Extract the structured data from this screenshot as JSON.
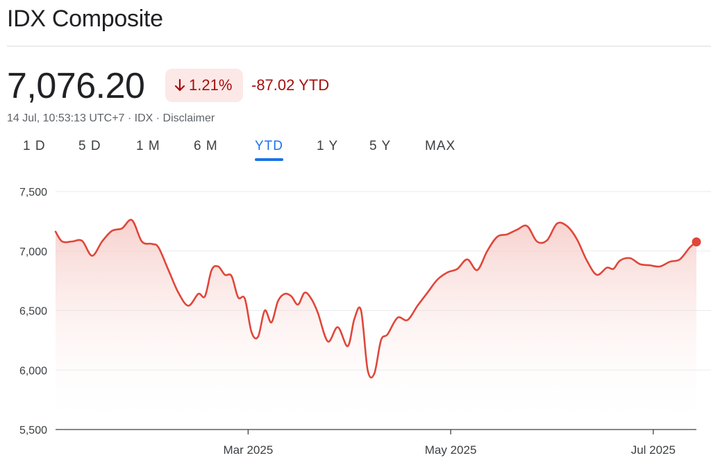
{
  "header": {
    "title": "IDX Composite"
  },
  "quote": {
    "price": "7,076.20",
    "change_pct": "1.21%",
    "change_abs": "-87.02 YTD",
    "direction": "down",
    "timestamp": "14 Jul, 10:53:13 UTC+7",
    "exchange": "IDX",
    "disclaimer": "Disclaimer",
    "separator": " · "
  },
  "tabs": [
    {
      "label": "1 D",
      "active": false
    },
    {
      "label": "5 D",
      "active": false
    },
    {
      "label": "1 M",
      "active": false
    },
    {
      "label": "6 M",
      "active": false
    },
    {
      "label": "YTD",
      "active": true
    },
    {
      "label": "1 Y",
      "active": false
    },
    {
      "label": "5 Y",
      "active": false
    },
    {
      "label": "MAX",
      "active": false
    }
  ],
  "colors": {
    "line": "#e0463a",
    "fill_top": "#f4c2bd",
    "down_text": "#a50e0e",
    "down_bg": "#fce8e6",
    "active_tab": "#1a73e8",
    "grid": "#e8eaed"
  },
  "chart_data": {
    "type": "area",
    "title": "",
    "xlabel": "",
    "ylabel": "",
    "ylim": [
      5500,
      7500
    ],
    "yticks": [
      "7,500",
      "7,000",
      "6,500",
      "6,000",
      "5,500"
    ],
    "ytick_values": [
      7500,
      7000,
      6500,
      6000,
      5500
    ],
    "xlim": [
      "2025-01-02",
      "2025-07-14"
    ],
    "xticks": [
      {
        "label": "Mar 2025",
        "date": "2025-03-01"
      },
      {
        "label": "May 2025",
        "date": "2025-05-01"
      },
      {
        "label": "Jul 2025",
        "date": "2025-07-01"
      }
    ],
    "grid": true,
    "series": [
      {
        "x": [
          "2025-01-02",
          "2025-01-04",
          "2025-01-07",
          "2025-01-10",
          "2025-01-13",
          "2025-01-16",
          "2025-01-19",
          "2025-01-22",
          "2025-01-25",
          "2025-01-28",
          "2025-01-31",
          "2025-02-02",
          "2025-02-05",
          "2025-02-08",
          "2025-02-11",
          "2025-02-14",
          "2025-02-16",
          "2025-02-18",
          "2025-02-20",
          "2025-02-22",
          "2025-02-24",
          "2025-02-26",
          "2025-02-28",
          "2025-03-02",
          "2025-03-04",
          "2025-03-06",
          "2025-03-08",
          "2025-03-10",
          "2025-03-12",
          "2025-03-14",
          "2025-03-16",
          "2025-03-18",
          "2025-03-20",
          "2025-03-22",
          "2025-03-25",
          "2025-03-28",
          "2025-03-31",
          "2025-04-02",
          "2025-04-04",
          "2025-04-06",
          "2025-04-08",
          "2025-04-10",
          "2025-04-12",
          "2025-04-15",
          "2025-04-18",
          "2025-04-21",
          "2025-04-24",
          "2025-04-27",
          "2025-04-30",
          "2025-05-03",
          "2025-05-06",
          "2025-05-09",
          "2025-05-12",
          "2025-05-15",
          "2025-05-18",
          "2025-05-21",
          "2025-05-24",
          "2025-05-27",
          "2025-05-30",
          "2025-06-02",
          "2025-06-05",
          "2025-06-08",
          "2025-06-11",
          "2025-06-14",
          "2025-06-17",
          "2025-06-19",
          "2025-06-21",
          "2025-06-24",
          "2025-06-27",
          "2025-06-30",
          "2025-07-03",
          "2025-07-06",
          "2025-07-09",
          "2025-07-12",
          "2025-07-14"
        ],
        "values": [
          7163,
          7080,
          7080,
          7085,
          6960,
          7080,
          7170,
          7190,
          7260,
          7080,
          7060,
          7030,
          6840,
          6650,
          6540,
          6640,
          6620,
          6840,
          6870,
          6800,
          6790,
          6610,
          6600,
          6320,
          6280,
          6500,
          6400,
          6580,
          6640,
          6620,
          6550,
          6650,
          6600,
          6480,
          6240,
          6360,
          6200,
          6430,
          6500,
          6000,
          5970,
          6250,
          6300,
          6440,
          6420,
          6540,
          6650,
          6760,
          6820,
          6850,
          6930,
          6840,
          7000,
          7120,
          7140,
          7180,
          7210,
          7080,
          7090,
          7230,
          7210,
          7100,
          6920,
          6800,
          6860,
          6850,
          6920,
          6940,
          6890,
          6880,
          6870,
          6910,
          6930,
          7030,
          7076.2
        ]
      }
    ]
  }
}
